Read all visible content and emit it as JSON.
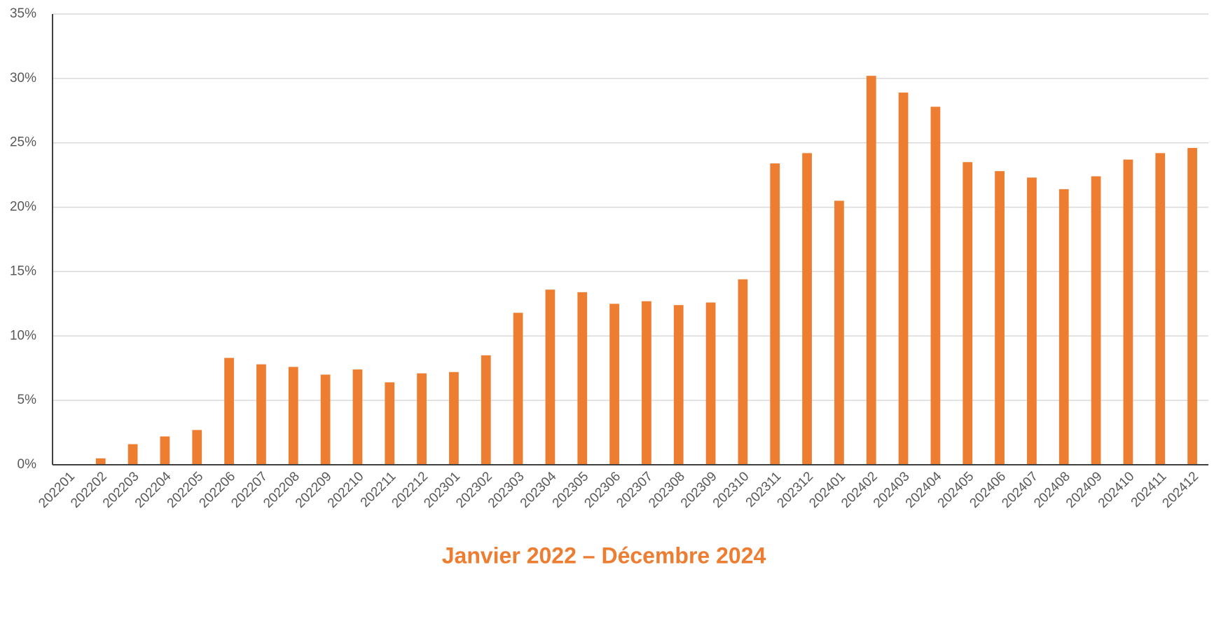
{
  "chart_data": {
    "type": "bar",
    "title": "Janvier 2022 – Décembre 2024",
    "categories": [
      "202201",
      "202202",
      "202203",
      "202204",
      "202205",
      "202206",
      "202207",
      "202208",
      "202209",
      "202210",
      "202211",
      "202212",
      "202301",
      "202302",
      "202303",
      "202304",
      "202305",
      "202306",
      "202307",
      "202308",
      "202309",
      "202310",
      "202311",
      "202312",
      "202401",
      "202402",
      "202403",
      "202404",
      "202405",
      "202406",
      "202407",
      "202408",
      "202409",
      "202410",
      "202411",
      "202412"
    ],
    "values": [
      0,
      0.5,
      1.6,
      2.2,
      2.7,
      8.3,
      7.8,
      7.6,
      7.0,
      7.4,
      6.4,
      7.1,
      7.2,
      8.5,
      11.8,
      13.6,
      13.4,
      12.5,
      12.7,
      12.4,
      12.6,
      14.4,
      23.4,
      24.2,
      20.5,
      30.2,
      28.9,
      27.8,
      23.5,
      22.8,
      22.3,
      21.4,
      22.4,
      23.7,
      24.2,
      24.6
    ],
    "color": "#ed7d31",
    "ylim": [
      0,
      35
    ],
    "yticks": [
      {
        "value": 0,
        "label": "0%"
      },
      {
        "value": 5,
        "label": "5%"
      },
      {
        "value": 10,
        "label": "10%"
      },
      {
        "value": 15,
        "label": "15%"
      },
      {
        "value": 20,
        "label": "20%"
      },
      {
        "value": 25,
        "label": "25%"
      },
      {
        "value": 30,
        "label": "30%"
      },
      {
        "value": 35,
        "label": "35%"
      }
    ],
    "grid": true
  }
}
